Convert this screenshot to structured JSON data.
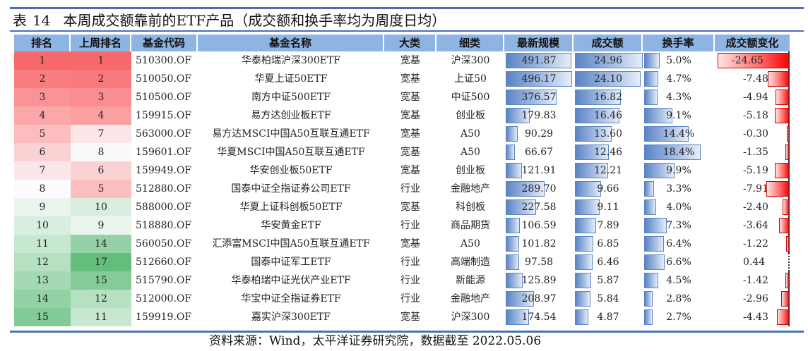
{
  "title": {
    "prefix": "表",
    "number": "14",
    "text": "本周成交额靠前的ETF产品（成交额和换手率均为周度日均）"
  },
  "columns": [
    "排名",
    "上周排名",
    "基金代码",
    "基金名称",
    "大类",
    "细类",
    "最新规模",
    "成交额",
    "换手率",
    "成交额变化"
  ],
  "colors": {
    "header_bg": "#8db4e2",
    "bar_blue": "#5b84c4",
    "bar_red": "#ff0000",
    "rule_line": "#4a72b0"
  },
  "rows": [
    {
      "rank": "1",
      "prev_rank": "1",
      "code": "510300.OF",
      "name": "华泰柏瑞沪深300ETF",
      "major": "宽基",
      "minor": "沪深300",
      "size": "491.87",
      "turnover": "24.96",
      "turnover_rate": "5.0%",
      "change": "-24.65",
      "rank_bg": "#f8696b",
      "prev_bg": "#f8696b"
    },
    {
      "rank": "2",
      "prev_rank": "2",
      "code": "510050.OF",
      "name": "华夏上证50ETF",
      "major": "宽基",
      "minor": "上证50",
      "size": "496.17",
      "turnover": "24.10",
      "turnover_rate": "4.7%",
      "change": "-7.48",
      "rank_bg": "#f97e80",
      "prev_bg": "#f97a7c"
    },
    {
      "rank": "3",
      "prev_rank": "3",
      "code": "510500.OF",
      "name": "南方中证500ETF",
      "major": "宽基",
      "minor": "中证500",
      "size": "376.57",
      "turnover": "16.82",
      "turnover_rate": "4.3%",
      "change": "-4.94",
      "rank_bg": "#fa9395",
      "prev_bg": "#fa8d8f"
    },
    {
      "rank": "4",
      "prev_rank": "4",
      "code": "159915.OF",
      "name": "易方达创业板ETF",
      "major": "宽基",
      "minor": "创业板",
      "size": "179.83",
      "turnover": "16.46",
      "turnover_rate": "9.1%",
      "change": "-5.18",
      "rank_bg": "#fba8aa",
      "prev_bg": "#fba0a2"
    },
    {
      "rank": "5",
      "prev_rank": "7",
      "code": "563000.OF",
      "name": "易方达MSCI中国A50互联互通ETF",
      "major": "宽基",
      "minor": "A50",
      "size": "90.29",
      "turnover": "13.60",
      "turnover_rate": "14.4%",
      "change": "-0.30",
      "rank_bg": "#fbbdbf",
      "prev_bg": "#fbe5e7"
    },
    {
      "rank": "6",
      "prev_rank": "8",
      "code": "159601.OF",
      "name": "华夏MSCI中国A50互联互通ETF",
      "major": "宽基",
      "minor": "A50",
      "size": "66.67",
      "turnover": "12.46",
      "turnover_rate": "18.4%",
      "change": "-1.35",
      "rank_bg": "#fbd2d4",
      "prev_bg": "#fbf8fb"
    },
    {
      "rank": "7",
      "prev_rank": "6",
      "code": "159949.OF",
      "name": "华安创业板50ETF",
      "major": "宽基",
      "minor": "创业板",
      "size": "121.91",
      "turnover": "12.21",
      "turnover_rate": "9.9%",
      "change": "-5.19",
      "rank_bg": "#fbe7e9",
      "prev_bg": "#fbd2d4"
    },
    {
      "rank": "8",
      "prev_rank": "5",
      "code": "512880.OF",
      "name": "国泰中证全指证券公司ETF",
      "major": "行业",
      "minor": "金融地产",
      "size": "289.70",
      "turnover": "9.66",
      "turnover_rate": "3.3%",
      "change": "-7.91",
      "rank_bg": "#fcfcff",
      "prev_bg": "#fbbec0"
    },
    {
      "rank": "9",
      "prev_rank": "10",
      "code": "588000.OF",
      "name": "华夏上证科创板50ETF",
      "major": "宽基",
      "minor": "科创板",
      "size": "227.58",
      "turnover": "9.11",
      "turnover_rate": "4.0%",
      "change": "-2.40",
      "rank_bg": "#ebf5ee",
      "prev_bg": "#d9eedf"
    },
    {
      "rank": "10",
      "prev_rank": "9",
      "code": "518880.OF",
      "name": "华安黄金ETF",
      "major": "行业",
      "minor": "商品期货",
      "size": "106.59",
      "turnover": "7.89",
      "turnover_rate": "7.3%",
      "change": "-3.64",
      "rank_bg": "#d9eedf",
      "prev_bg": "#eaf5ed"
    },
    {
      "rank": "11",
      "prev_rank": "14",
      "code": "560050.OF",
      "name": "汇添富MSCI中国A50互联互通ETF",
      "major": "宽基",
      "minor": "A50",
      "size": "101.82",
      "turnover": "6.85",
      "turnover_rate": "6.4%",
      "change": "-1.22",
      "rank_bg": "#c8e7d1",
      "prev_bg": "#95d1a6"
    },
    {
      "rank": "12",
      "prev_rank": "17",
      "code": "512660.OF",
      "name": "国泰中证军工ETF",
      "major": "行业",
      "minor": "高端制造",
      "size": "97.58",
      "turnover": "6.46",
      "turnover_rate": "6.6%",
      "change": "0.44",
      "rank_bg": "#b6e0c2",
      "prev_bg": "#63be7b"
    },
    {
      "rank": "13",
      "prev_rank": "15",
      "code": "515790.OF",
      "name": "华泰柏瑞中证光伏产业ETF",
      "major": "行业",
      "minor": "新能源",
      "size": "125.89",
      "turnover": "5.87",
      "turnover_rate": "4.5%",
      "change": "-1.42",
      "rank_bg": "#a4d9b3",
      "prev_bg": "#85cb98"
    },
    {
      "rank": "14",
      "prev_rank": "12",
      "code": "512000.OF",
      "name": "华宝中证全指证券ETF",
      "major": "行业",
      "minor": "金融地产",
      "size": "208.97",
      "turnover": "5.84",
      "turnover_rate": "2.8%",
      "change": "-2.96",
      "rank_bg": "#93d2a5",
      "prev_bg": "#b6e0c2"
    },
    {
      "rank": "15",
      "prev_rank": "11",
      "code": "159919.OF",
      "name": "嘉实沪深300ETF",
      "major": "宽基",
      "minor": "沪深300",
      "size": "174.54",
      "turnover": "4.87",
      "turnover_rate": "2.7%",
      "change": "-4.43",
      "rank_bg": "#82cb96",
      "prev_bg": "#c8e7d1"
    }
  ],
  "footer": "资料来源：Wind，太平洋证券研究院，数据截至 2022.05.06"
}
